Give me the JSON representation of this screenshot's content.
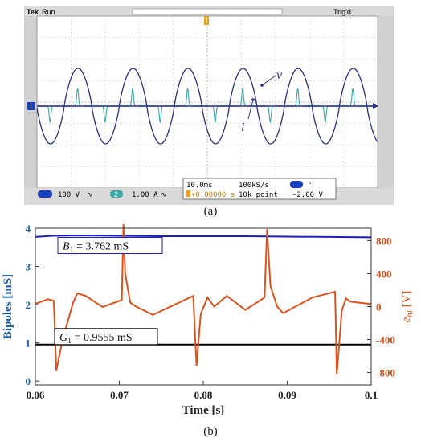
{
  "scope": {
    "status_left": "Tek",
    "status_run": "Run",
    "status_right": "Trig'd",
    "trigger_marker": "T",
    "ch1_marker": "1",
    "label_v": "v",
    "label_i": "i",
    "ch1_scale": "100 V",
    "ch1_coupling": "∿",
    "ch2_number": "2",
    "ch2_scale": "1.00 A",
    "ch2_coupling": "∿",
    "timebase": "10.0ms",
    "sample_rate": "100kS/s",
    "trig_pos": "▾0.00000 s",
    "record_length": "10k point",
    "trig_slope": "⌝",
    "trig_level": "−2.00 V",
    "colors": {
      "grid": "#9a9a9a",
      "ch1": "#2b2e7e",
      "ch2": "#3aa8a8",
      "ch1_marker": "#1a3fbf",
      "trigger": "#e8a020"
    }
  },
  "caption_a": "(a)",
  "caption_b": "(b)",
  "chart_data": {
    "type": "line",
    "xlabel": "Time [s]",
    "xlim": [
      0.06,
      0.1
    ],
    "xticks": [
      0.06,
      0.07,
      0.08,
      0.09,
      0.1
    ],
    "xtick_labels": [
      "0.06",
      "0.07",
      "0.08",
      "0.09",
      "0.1"
    ],
    "left_axis": {
      "label": "Bipoles [mS]",
      "lim": [
        -0.1,
        4.0
      ],
      "ticks": [
        0,
        1,
        2,
        3,
        4
      ],
      "tick_labels": [
        "0",
        "1",
        "2",
        "3",
        "4"
      ],
      "color": "#1f5fa8"
    },
    "right_axis": {
      "label_main": "e",
      "label_sub": "hl",
      "label_unit": " [V]",
      "lim": [
        -950,
        950
      ],
      "ticks": [
        800,
        400,
        0,
        -400,
        -800
      ],
      "tick_labels": [
        "800",
        "400",
        "0",
        "-400",
        "-800"
      ],
      "color": "#c8501a"
    },
    "series": [
      {
        "axis": "left",
        "color": "#1b1fb8",
        "x": [
          0.06,
          0.062,
          0.065,
          0.07,
          0.075,
          0.08,
          0.085,
          0.09,
          0.095,
          0.1
        ],
        "values": [
          3.77,
          3.8,
          3.81,
          3.8,
          3.79,
          3.79,
          3.79,
          3.78,
          3.77,
          3.76
        ]
      },
      {
        "axis": "left",
        "color": "#000000",
        "x": [
          0.06,
          0.1
        ],
        "values": [
          0.9555,
          0.9555
        ]
      },
      {
        "axis": "right",
        "color": "#d9531e",
        "x": [
          0.06,
          0.0615,
          0.0622,
          0.0625,
          0.0632,
          0.0645,
          0.065,
          0.066,
          0.068,
          0.0703,
          0.0705,
          0.0707,
          0.0713,
          0.072,
          0.074,
          0.0788,
          0.0792,
          0.0797,
          0.0805,
          0.0813,
          0.082,
          0.0828,
          0.085,
          0.0873,
          0.0876,
          0.088,
          0.0888,
          0.0895,
          0.093,
          0.0957,
          0.0959,
          0.0965,
          0.097,
          0.0975,
          0.1
        ],
        "values": [
          35,
          90,
          70,
          -780,
          -420,
          50,
          160,
          130,
          -5,
          80,
          1000,
          400,
          50,
          0,
          -100,
          130,
          -720,
          -90,
          110,
          0,
          60,
          130,
          -40,
          110,
          940,
          250,
          0,
          -80,
          110,
          180,
          -820,
          -50,
          100,
          60,
          30
        ]
      }
    ],
    "annotations": [
      {
        "text_main": "B",
        "text_sub": "1",
        "text_rest": " = 3.762 mS",
        "color": "#1b1fb8"
      },
      {
        "text_main": "G",
        "text_sub": "1",
        "text_rest": " = 0.9555 mS",
        "color": "#000000"
      }
    ]
  }
}
